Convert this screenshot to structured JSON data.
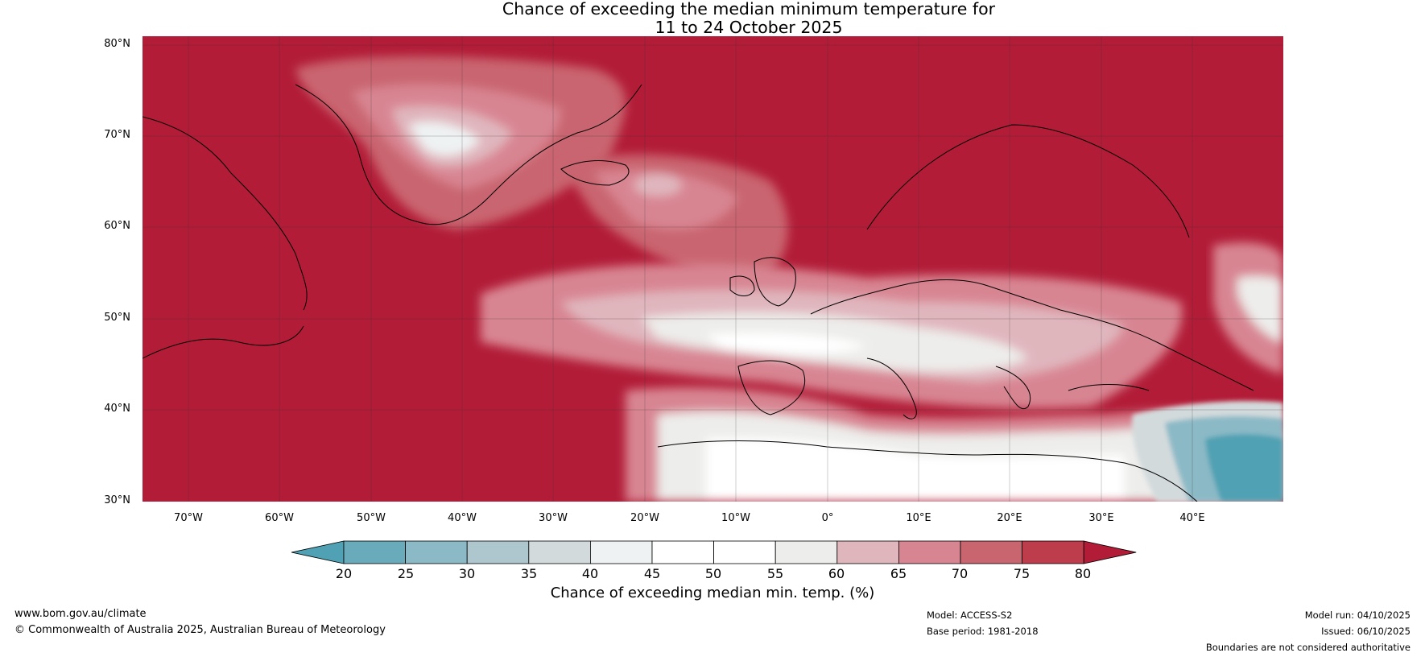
{
  "title": {
    "line1": "Chance of exceeding the median minimum temperature for",
    "line2": "11 to 24 October 2025"
  },
  "map": {
    "lat_labels": [
      "80°N",
      "70°N",
      "60°N",
      "50°N",
      "40°N",
      "30°N"
    ],
    "lon_labels": [
      "70°W",
      "60°W",
      "50°W",
      "40°W",
      "30°W",
      "20°W",
      "10°W",
      "0°",
      "10°E",
      "20°E",
      "30°E",
      "40°E"
    ]
  },
  "colorbar": {
    "ticks": [
      "20",
      "25",
      "30",
      "35",
      "40",
      "45",
      "50",
      "55",
      "60",
      "65",
      "70",
      "75",
      "80"
    ],
    "colors": [
      "#4fa1b3",
      "#6aabbb",
      "#8bb9c6",
      "#aec7cf",
      "#d3dadc",
      "#eef2f3",
      "#ffffff",
      "#ffffff",
      "#ededeb",
      "#e0b6bd",
      "#d88592",
      "#c9656f",
      "#bd3d4c",
      "#b21c37"
    ],
    "label": "Chance of exceeding median min. temp. (%)"
  },
  "footer": {
    "website": "www.bom.gov.au/climate",
    "copyright": "© Commonwealth of Australia 2025, Australian Bureau of Meteorology",
    "model": "Model: ACCESS-S2",
    "base_period": "Base period: 1981-2018",
    "model_run": "Model run: 04/10/2025",
    "issued": "Issued: 06/10/2025",
    "disclaimer": "Boundaries are not considered authoritative"
  }
}
